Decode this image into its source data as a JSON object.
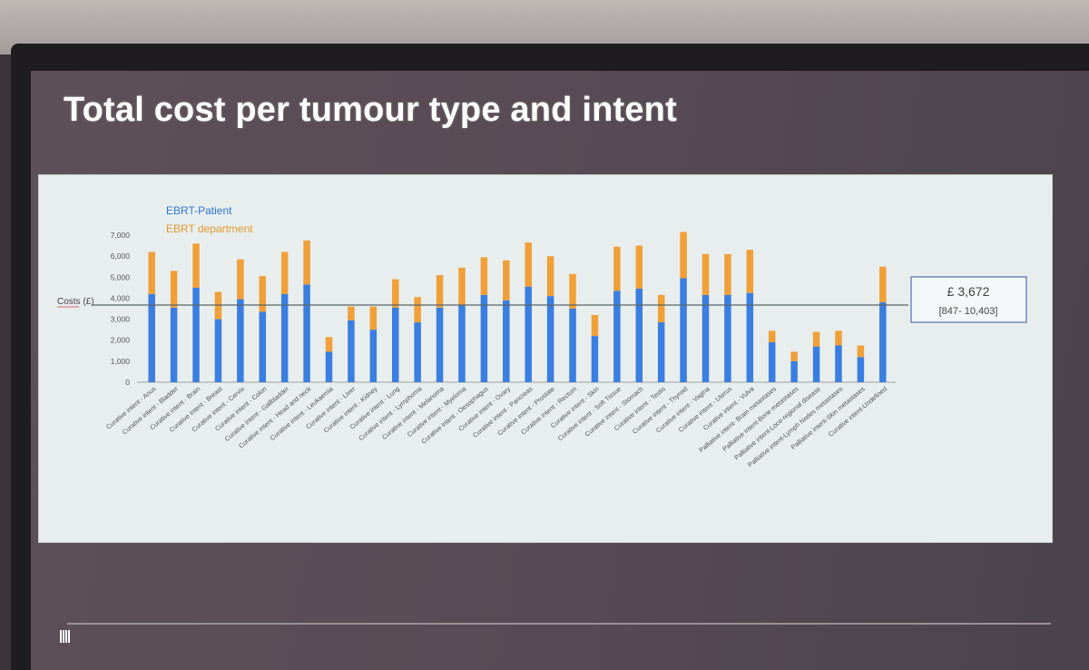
{
  "slide": {
    "title": "Total cost per tumour type and intent"
  },
  "chart_data": {
    "type": "bar",
    "stacked": true,
    "legend_position": "top-left",
    "ylabel": "Costs (£)",
    "ylim": [
      0,
      7000
    ],
    "yticks": [
      "0",
      "1,000",
      "2,000",
      "3,000",
      "4,000",
      "5,000",
      "6,000",
      "7,000"
    ],
    "grid": false,
    "categories": [
      "Curative intent - Anus",
      "Curative intent - Bladder",
      "Curative intent - Brain",
      "Curative intent - Breast",
      "Curative intent - Cervix",
      "Curative intent - Colon",
      "Curative intent - Gallbladder",
      "Curative intent - Head and neck",
      "Curative intent - Leukaemia",
      "Curative intent - Liver",
      "Curative intent - Kidney",
      "Curative intent - Lung",
      "Curative intent - Lymphoma",
      "Curative intent - Melanoma",
      "Curative intent - Myeloma",
      "Curative intent - Oesophagus",
      "Curative intent - Ovary",
      "Curative intent - Pancreas",
      "Curative intent - Prostate",
      "Curative intent - Rectum",
      "Curative intent - Skin",
      "Curative intent - Soft Tissue",
      "Curative intent - Stomach",
      "Curative intent - Testis",
      "Curative intent - Thyroid",
      "Curative intent - Vagina",
      "Curative intent - Uterus",
      "Curative intent - Vulva",
      "Palliative intent- Brain metastases",
      "Palliative intent-Bone metastases",
      "Palliative intent-Loco-regional disease",
      "Palliative intent-Lymph Nodes metastases",
      "Palliative intent-Skin metastases",
      "Curative intent-Undefined"
    ],
    "series": [
      {
        "name": "EBRT-Patient",
        "color": "#3a7ee0",
        "values": [
          4200,
          3550,
          4500,
          3000,
          3950,
          3350,
          4200,
          4650,
          1450,
          2950,
          2500,
          3550,
          2850,
          3550,
          3650,
          4150,
          3900,
          4550,
          4100,
          3500,
          2200,
          4350,
          4450,
          2850,
          4950,
          4150,
          4150,
          4250,
          1900,
          1000,
          1700,
          1750,
          1200,
          3800
        ]
      },
      {
        "name": "EBRT department",
        "color": "#f0a038",
        "values": [
          2000,
          1750,
          2100,
          1300,
          1900,
          1700,
          2000,
          2100,
          700,
          650,
          1100,
          1350,
          1200,
          1550,
          1800,
          1800,
          1900,
          2100,
          1900,
          1650,
          1000,
          2100,
          2050,
          1300,
          2200,
          1950,
          1950,
          2050,
          550,
          450,
          700,
          700,
          550,
          1700
        ]
      }
    ],
    "reference_line": {
      "value": 3672
    },
    "annotation": {
      "value": "£ 3,672",
      "range": "[847- 10,403]"
    }
  }
}
